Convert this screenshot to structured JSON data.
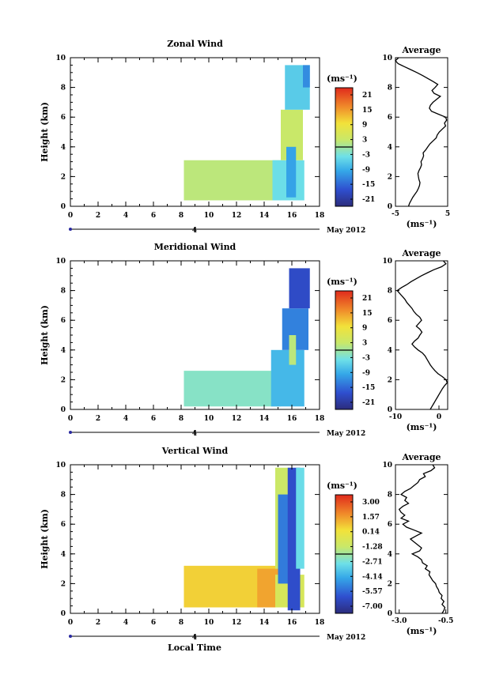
{
  "xlabel": "Local Time",
  "chart_data": [
    {
      "type": "heatmap",
      "title": "Zonal Wind",
      "ylabel": "Height (km)",
      "xlim": [
        0,
        18
      ],
      "ylim": [
        0,
        10
      ],
      "x_ticks": [
        "0",
        "2",
        "4",
        "6",
        "8",
        "10",
        "12",
        "14",
        "16",
        "18"
      ],
      "y_ticks": [
        "0",
        "2",
        "4",
        "6",
        "8",
        "10"
      ],
      "date_marker": "4",
      "date_label": "May 2012",
      "colorbar": {
        "unit": "(ms⁻¹)",
        "ticks": [
          "21",
          "15",
          "9",
          "3",
          "-3",
          "-9",
          "-15",
          "-21"
        ],
        "range": [
          -24,
          24
        ]
      },
      "regions": [
        {
          "x": [
            8.2,
            15.2
          ],
          "y": [
            0.4,
            3.1
          ],
          "value": 2
        },
        {
          "x": [
            14.6,
            16.9
          ],
          "y": [
            0.4,
            3.1
          ],
          "value": -4
        },
        {
          "x": [
            15.2,
            16.8
          ],
          "y": [
            3.1,
            6.5
          ],
          "value": 3
        },
        {
          "x": [
            15.5,
            17.3
          ],
          "y": [
            6.5,
            9.5
          ],
          "value": -6
        },
        {
          "x": [
            16.8,
            17.3
          ],
          "y": [
            8.0,
            9.5
          ],
          "value": -12
        },
        {
          "x": [
            15.6,
            16.3
          ],
          "y": [
            0.6,
            4.0
          ],
          "value": -10
        }
      ],
      "profile": {
        "title": "Average",
        "xlabel": "(ms⁻¹)",
        "xlim": [
          -5,
          5
        ],
        "x_ticks": [
          "-5",
          "5"
        ],
        "y_ticks": [
          "0",
          "2",
          "4",
          "6",
          "8",
          "10"
        ],
        "x": [
          -2.5,
          -2.3,
          -2.0,
          -1.7,
          -1.3,
          -0.9,
          -0.6,
          -0.4,
          -0.3,
          -0.5,
          -0.6,
          -0.7,
          -0.5,
          -0.2,
          0.0,
          -0.1,
          0.2,
          0.4,
          0.3,
          0.8,
          1.2,
          1.6,
          2.2,
          2.8,
          3.0,
          3.4,
          4.0,
          4.6,
          4.4,
          4.8,
          4.6,
          3.2,
          1.9,
          1.5,
          1.7,
          2.2,
          2.9,
          3.6,
          2.4,
          2.0,
          2.6,
          3.1,
          2.2,
          1.2,
          0.2,
          -0.9,
          -2.1,
          -3.3,
          -4.5,
          -5.0,
          -4.4
        ],
        "y": [
          0.0,
          0.2,
          0.4,
          0.6,
          0.8,
          1.0,
          1.2,
          1.4,
          1.6,
          1.8,
          2.0,
          2.2,
          2.4,
          2.6,
          2.8,
          3.0,
          3.2,
          3.4,
          3.6,
          3.8,
          4.0,
          4.2,
          4.4,
          4.6,
          4.8,
          5.0,
          5.2,
          5.4,
          5.6,
          5.8,
          6.0,
          6.2,
          6.4,
          6.6,
          6.8,
          7.0,
          7.2,
          7.4,
          7.6,
          7.8,
          8.0,
          8.2,
          8.4,
          8.6,
          8.8,
          9.0,
          9.2,
          9.4,
          9.6,
          9.8,
          10.0
        ]
      }
    },
    {
      "type": "heatmap",
      "title": "Meridional Wind",
      "ylabel": "Height (km)",
      "xlim": [
        0,
        18
      ],
      "ylim": [
        0,
        10
      ],
      "x_ticks": [
        "0",
        "2",
        "4",
        "6",
        "8",
        "10",
        "12",
        "14",
        "16",
        "18"
      ],
      "y_ticks": [
        "0",
        "2",
        "4",
        "6",
        "8",
        "10"
      ],
      "date_marker": "4",
      "date_label": "May 2012",
      "colorbar": {
        "unit": "(ms⁻¹)",
        "ticks": [
          "21",
          "15",
          "9",
          "3",
          "-3",
          "-9",
          "-15",
          "-21"
        ],
        "range": [
          -24,
          24
        ]
      },
      "regions": [
        {
          "x": [
            8.2,
            15.2
          ],
          "y": [
            0.2,
            2.6
          ],
          "value": -2
        },
        {
          "x": [
            14.5,
            16.9
          ],
          "y": [
            0.2,
            4.0
          ],
          "value": -8
        },
        {
          "x": [
            15.3,
            17.2
          ],
          "y": [
            4.0,
            6.8
          ],
          "value": -13
        },
        {
          "x": [
            15.8,
            17.3
          ],
          "y": [
            6.8,
            9.5
          ],
          "value": -18
        },
        {
          "x": [
            15.8,
            16.3
          ],
          "y": [
            3.0,
            5.0
          ],
          "value": 2
        }
      ],
      "profile": {
        "title": "Average",
        "xlabel": "(ms⁻¹)",
        "xlim": [
          -10,
          2
        ],
        "x_ticks": [
          "-10",
          "0"
        ],
        "y_ticks": [
          "0",
          "2",
          "4",
          "6",
          "8",
          "10"
        ],
        "x": [
          -2.0,
          -1.6,
          -1.2,
          -0.8,
          -0.4,
          0.0,
          0.4,
          0.8,
          1.3,
          1.9,
          1.6,
          0.8,
          -0.2,
          -0.9,
          -1.5,
          -2.0,
          -2.4,
          -2.8,
          -3.2,
          -3.8,
          -4.8,
          -5.6,
          -6.2,
          -5.6,
          -4.8,
          -4.4,
          -3.9,
          -4.4,
          -5.2,
          -4.6,
          -4.0,
          -4.4,
          -5.2,
          -5.8,
          -6.2,
          -6.8,
          -7.4,
          -7.8,
          -8.4,
          -9.0,
          -9.6,
          -8.6,
          -7.4,
          -6.4,
          -5.2,
          -4.0,
          -2.6,
          -1.2,
          0.6,
          1.6,
          1.0
        ],
        "y": [
          0.0,
          0.2,
          0.4,
          0.6,
          0.8,
          1.0,
          1.2,
          1.4,
          1.6,
          1.8,
          2.0,
          2.2,
          2.4,
          2.6,
          2.8,
          3.0,
          3.2,
          3.4,
          3.6,
          3.8,
          4.0,
          4.2,
          4.4,
          4.6,
          4.8,
          5.0,
          5.2,
          5.4,
          5.6,
          5.8,
          6.0,
          6.2,
          6.4,
          6.6,
          6.8,
          7.0,
          7.2,
          7.4,
          7.6,
          7.8,
          8.0,
          8.2,
          8.4,
          8.6,
          8.8,
          9.0,
          9.2,
          9.4,
          9.6,
          9.8,
          10.0
        ]
      }
    },
    {
      "type": "heatmap",
      "title": "Vertical Wind",
      "ylabel": "Height (km)",
      "xlim": [
        0,
        18
      ],
      "ylim": [
        0,
        10
      ],
      "x_ticks": [
        "0",
        "2",
        "4",
        "6",
        "8",
        "10",
        "12",
        "14",
        "16",
        "18"
      ],
      "y_ticks": [
        "0",
        "2",
        "4",
        "6",
        "8",
        "10"
      ],
      "date_marker": "4",
      "date_label": "May 2012",
      "colorbar": {
        "unit": "(ms⁻¹)",
        "ticks": [
          "3.00",
          "1.57",
          "0.14",
          "-1.28",
          "-2.71",
          "-4.14",
          "-5.57",
          "-7.00"
        ],
        "range": [
          -7.7,
          3.7
        ]
      },
      "regions": [
        {
          "x": [
            8.2,
            15.0
          ],
          "y": [
            0.4,
            3.2
          ],
          "value": 0.6
        },
        {
          "x": [
            13.5,
            15.0
          ],
          "y": [
            0.4,
            3.0
          ],
          "value": 1.4
        },
        {
          "x": [
            14.8,
            16.9
          ],
          "y": [
            0.4,
            2.6
          ],
          "value": -0.8
        },
        {
          "x": [
            14.8,
            16.0
          ],
          "y": [
            3.0,
            9.8
          ],
          "value": -1.2
        },
        {
          "x": [
            15.0,
            15.8
          ],
          "y": [
            2.0,
            8.0
          ],
          "value": -5.2
        },
        {
          "x": [
            15.7,
            16.6
          ],
          "y": [
            0.2,
            9.8
          ],
          "value": -6.2
        },
        {
          "x": [
            16.3,
            16.9
          ],
          "y": [
            3.0,
            9.8
          ],
          "value": -3.0
        }
      ],
      "profile": {
        "title": "Average",
        "xlabel": "(ms⁻¹)",
        "xlim": [
          -3.2,
          -0.4
        ],
        "x_ticks": [
          "-3.0",
          "-0.5"
        ],
        "y_ticks": [
          "0",
          "2",
          "4",
          "6",
          "8",
          "10"
        ],
        "x": [
          -0.7,
          -0.6,
          -0.55,
          -0.7,
          -0.6,
          -0.75,
          -0.7,
          -0.85,
          -0.9,
          -1.0,
          -1.05,
          -1.2,
          -1.3,
          -1.4,
          -1.35,
          -1.6,
          -1.5,
          -1.75,
          -1.8,
          -2.0,
          -2.3,
          -1.9,
          -1.8,
          -2.0,
          -2.2,
          -2.4,
          -2.1,
          -1.8,
          -2.2,
          -2.6,
          -2.8,
          -2.5,
          -2.9,
          -2.7,
          -2.9,
          -3.0,
          -2.8,
          -2.5,
          -2.7,
          -2.6,
          -2.9,
          -2.7,
          -2.4,
          -2.2,
          -2.0,
          -1.9,
          -1.6,
          -1.7,
          -1.3,
          -1.1,
          -1.2
        ],
        "y": [
          0.0,
          0.2,
          0.4,
          0.6,
          0.8,
          1.0,
          1.2,
          1.4,
          1.6,
          1.8,
          2.0,
          2.2,
          2.4,
          2.6,
          2.8,
          3.0,
          3.2,
          3.4,
          3.6,
          3.8,
          4.0,
          4.2,
          4.4,
          4.6,
          4.8,
          5.0,
          5.2,
          5.4,
          5.6,
          5.8,
          6.0,
          6.2,
          6.4,
          6.6,
          6.8,
          7.0,
          7.2,
          7.4,
          7.6,
          7.8,
          8.0,
          8.2,
          8.4,
          8.6,
          8.8,
          9.0,
          9.2,
          9.4,
          9.6,
          9.8,
          10.0
        ]
      }
    }
  ]
}
